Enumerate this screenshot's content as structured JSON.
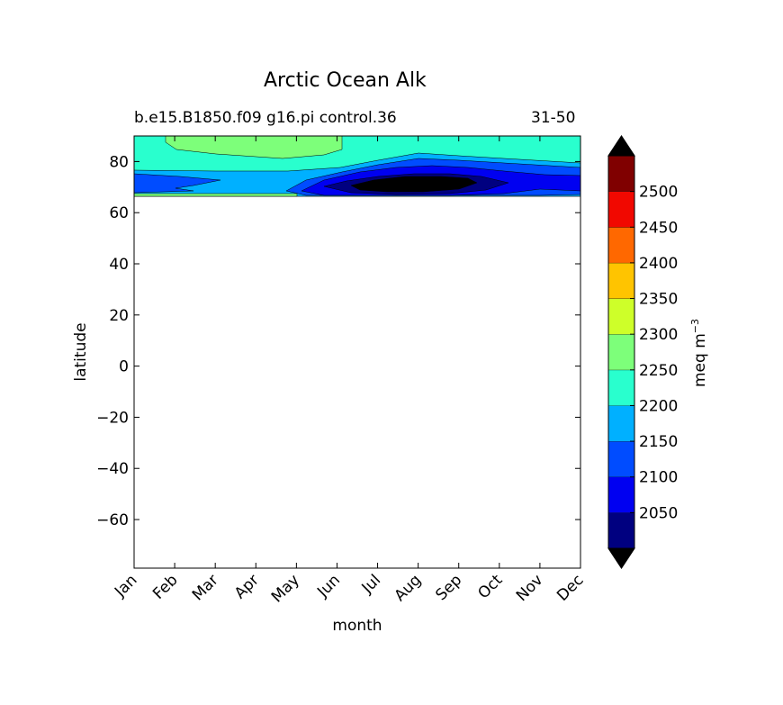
{
  "chart_data": {
    "type": "heatmap",
    "style": "filled-contour",
    "title": "Arctic Ocean Alk",
    "subtitle_left": "b.e15.B1850.f09 g16.pi control.36",
    "subtitle_right": "31-50",
    "xlabel": "month",
    "ylabel": "latitude",
    "x_ticks": [
      "Jan",
      "Feb",
      "Mar",
      "Apr",
      "May",
      "Jun",
      "Jul",
      "Aug",
      "Sep",
      "Oct",
      "Nov",
      "Dec"
    ],
    "y_ticks": [
      80,
      60,
      40,
      20,
      0,
      -20,
      -40,
      -60
    ],
    "ylim": [
      -79,
      90
    ],
    "colorbar": {
      "label": "meq m",
      "label_exponent": "−3",
      "levels": [
        2000,
        2050,
        2100,
        2150,
        2200,
        2250,
        2300,
        2350,
        2400,
        2450,
        2500,
        2550
      ],
      "tick_labels": [
        "2050",
        "2100",
        "2150",
        "2200",
        "2250",
        "2300",
        "2350",
        "2400",
        "2450",
        "2500"
      ],
      "colors": [
        "#000080",
        "#0000f1",
        "#004cff",
        "#00b0ff",
        "#29ffce",
        "#7dff7a",
        "#ceff29",
        "#ffc400",
        "#ff6800",
        "#f10800",
        "#800000"
      ],
      "extend_color": "#000000"
    },
    "data_extent_lat": [
      66,
      90
    ],
    "regions": [
      {
        "range": "2200-2250",
        "lat_band": [
          77,
          90
        ],
        "months": "all"
      },
      {
        "range": "2250-2300",
        "lat_band": [
          82,
          89
        ],
        "months": "Feb-Jun"
      },
      {
        "range": "2150-2200",
        "lat_band": [
          66,
          79
        ],
        "months": "all"
      },
      {
        "range": "2100-2150",
        "lat_band": [
          68,
          78
        ],
        "months": "Jan-Mar, May-Dec"
      },
      {
        "range": "2050-2100",
        "lat_band": [
          67,
          77
        ],
        "months": "Jun-Dec"
      },
      {
        "range": "2000-2050",
        "lat_band": [
          68,
          75
        ],
        "months": "Jul-Oct"
      },
      {
        "range": "2250-2300",
        "lat_band": [
          66,
          67
        ],
        "months": "Jan-May"
      }
    ]
  }
}
